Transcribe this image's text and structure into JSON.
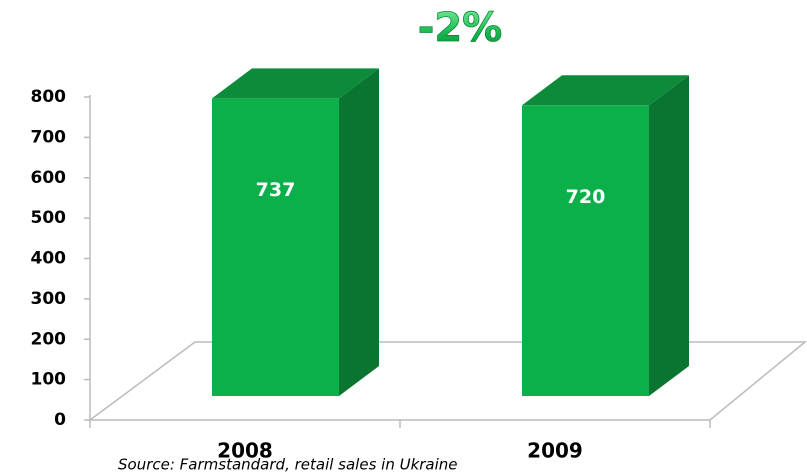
{
  "chart_data": {
    "type": "bar3d",
    "annotation": "-2%",
    "categories": [
      "2008",
      "2009"
    ],
    "values": [
      737,
      720
    ],
    "color": "#0bb04a",
    "ylim": [
      0,
      800
    ],
    "yticks": [
      0,
      100,
      200,
      300,
      400,
      500,
      600,
      700,
      800
    ],
    "source": "Source: Farmstandard, retail sales in Ukraine"
  }
}
